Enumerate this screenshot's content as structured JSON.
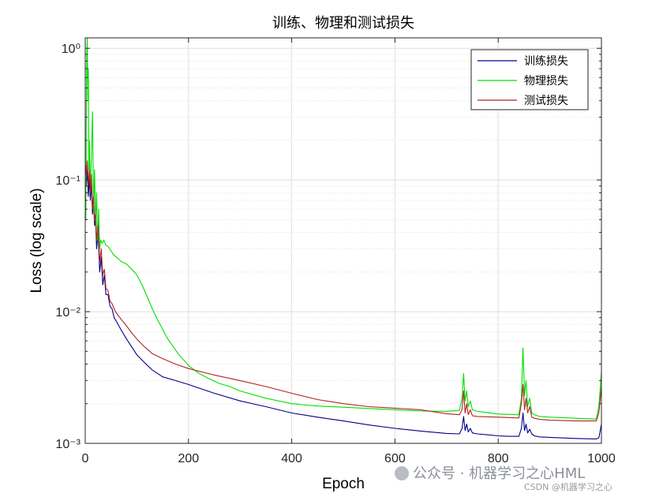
{
  "chart_data": {
    "type": "line",
    "title": "训练、物理和测试损失",
    "xlabel": "Epoch",
    "ylabel": "Loss (log scale)",
    "xlim": [
      0,
      1000
    ],
    "ylim": [
      0.001,
      1.2
    ],
    "y_scale": "log",
    "grid": true,
    "legend_position": "top-right",
    "x_ticks": [
      0,
      200,
      400,
      600,
      800,
      1000
    ],
    "x_tick_labels": [
      "0",
      "200",
      "400",
      "600",
      "800",
      "1000"
    ],
    "y_ticks": [
      0.001,
      0.01,
      0.1,
      1
    ],
    "y_tick_labels": [
      "10⁻³",
      "10⁻²",
      "10⁻¹",
      "10⁰"
    ],
    "series": [
      {
        "name": "训练损失",
        "color": "#00008b",
        "x": [
          0,
          2,
          4,
          6,
          8,
          10,
          12,
          14,
          16,
          18,
          20,
          22,
          25,
          28,
          31,
          34,
          37,
          40,
          44,
          48,
          52,
          56,
          60,
          70,
          80,
          90,
          100,
          115,
          130,
          150,
          175,
          200,
          250,
          300,
          350,
          400,
          450,
          500,
          550,
          600,
          650,
          700,
          725,
          730,
          733,
          736,
          739,
          742,
          746,
          750,
          760,
          780,
          800,
          820,
          840,
          845,
          848,
          851,
          854,
          857,
          861,
          865,
          870,
          880,
          900,
          950,
          990,
          995,
          1000
        ],
        "y": [
          0.1,
          0.09,
          0.12,
          0.075,
          0.1,
          0.07,
          0.095,
          0.055,
          0.07,
          0.045,
          0.05,
          0.03,
          0.04,
          0.02,
          0.026,
          0.016,
          0.019,
          0.0135,
          0.0135,
          0.011,
          0.0105,
          0.009,
          0.0085,
          0.0072,
          0.0062,
          0.0054,
          0.0047,
          0.0041,
          0.0036,
          0.0032,
          0.003,
          0.0028,
          0.0024,
          0.0021,
          0.0019,
          0.0017,
          0.00158,
          0.00148,
          0.00138,
          0.0013,
          0.00124,
          0.00119,
          0.00118,
          0.0013,
          0.0016,
          0.00125,
          0.0014,
          0.00122,
          0.0013,
          0.0012,
          0.00118,
          0.00116,
          0.00114,
          0.00113,
          0.00113,
          0.0013,
          0.0017,
          0.00125,
          0.0014,
          0.0012,
          0.00128,
          0.00118,
          0.00114,
          0.00112,
          0.00111,
          0.00109,
          0.00108,
          0.0011,
          0.0014
        ]
      },
      {
        "name": "物理损失",
        "color": "#00e000",
        "x": [
          0,
          1,
          2,
          3,
          4,
          5,
          6,
          7,
          8,
          10,
          12,
          14,
          16,
          18,
          20,
          22,
          24,
          26,
          28,
          30,
          33,
          36,
          40,
          45,
          50,
          55,
          60,
          65,
          70,
          80,
          90,
          100,
          110,
          120,
          130,
          140,
          160,
          180,
          200,
          220,
          240,
          260,
          280,
          300,
          350,
          400,
          450,
          500,
          550,
          600,
          650,
          700,
          725,
          730,
          733,
          736,
          739,
          742,
          746,
          750,
          760,
          800,
          840,
          845,
          848,
          851,
          854,
          857,
          861,
          865,
          870,
          880,
          900,
          950,
          990,
          995,
          1000
        ],
        "y": [
          0.15,
          0.05,
          0.3,
          0.9,
          1.2,
          0.4,
          0.7,
          0.12,
          0.2,
          0.08,
          0.15,
          0.33,
          0.06,
          0.12,
          0.045,
          0.08,
          0.035,
          0.06,
          0.03,
          0.035,
          0.033,
          0.035,
          0.032,
          0.031,
          0.029,
          0.027,
          0.026,
          0.025,
          0.024,
          0.023,
          0.021,
          0.019,
          0.016,
          0.013,
          0.0105,
          0.0087,
          0.0062,
          0.0048,
          0.0039,
          0.0034,
          0.0031,
          0.00285,
          0.0027,
          0.0025,
          0.0022,
          0.002,
          0.00192,
          0.00188,
          0.00184,
          0.0018,
          0.00176,
          0.00175,
          0.00178,
          0.0022,
          0.0034,
          0.0021,
          0.0025,
          0.0019,
          0.0021,
          0.0018,
          0.00175,
          0.00167,
          0.00165,
          0.0022,
          0.0053,
          0.0023,
          0.003,
          0.0019,
          0.0022,
          0.0017,
          0.00165,
          0.0016,
          0.00158,
          0.00155,
          0.00153,
          0.0019,
          0.0035
        ]
      },
      {
        "name": "测试损失",
        "color": "#b22222",
        "x": [
          0,
          2,
          4,
          6,
          8,
          10,
          12,
          14,
          16,
          18,
          20,
          22,
          25,
          28,
          31,
          34,
          37,
          40,
          44,
          48,
          52,
          56,
          60,
          70,
          80,
          90,
          100,
          115,
          130,
          150,
          175,
          200,
          250,
          300,
          350,
          400,
          450,
          500,
          550,
          600,
          650,
          700,
          725,
          730,
          733,
          736,
          739,
          742,
          746,
          750,
          760,
          800,
          840,
          845,
          848,
          851,
          854,
          857,
          861,
          865,
          870,
          880,
          900,
          950,
          990,
          995,
          1000
        ],
        "y": [
          0.13,
          0.11,
          0.14,
          0.09,
          0.12,
          0.08,
          0.11,
          0.06,
          0.075,
          0.05,
          0.055,
          0.035,
          0.045,
          0.024,
          0.03,
          0.019,
          0.021,
          0.015,
          0.0145,
          0.012,
          0.0115,
          0.0105,
          0.0098,
          0.0087,
          0.0078,
          0.0069,
          0.0062,
          0.0054,
          0.0048,
          0.0044,
          0.004,
          0.0037,
          0.0033,
          0.003,
          0.0027,
          0.0024,
          0.00215,
          0.002,
          0.0019,
          0.00185,
          0.0018,
          0.00168,
          0.00165,
          0.0018,
          0.0025,
          0.0017,
          0.002,
          0.00165,
          0.0018,
          0.00162,
          0.0016,
          0.00158,
          0.00156,
          0.002,
          0.0028,
          0.0018,
          0.0022,
          0.0017,
          0.0019,
          0.00158,
          0.00155,
          0.00152,
          0.0015,
          0.00148,
          0.00148,
          0.0017,
          0.0027
        ]
      }
    ]
  },
  "watermark": {
    "main": "公众号 · 机器学习之心HML",
    "sub": "CSDN @机器学习之心"
  }
}
